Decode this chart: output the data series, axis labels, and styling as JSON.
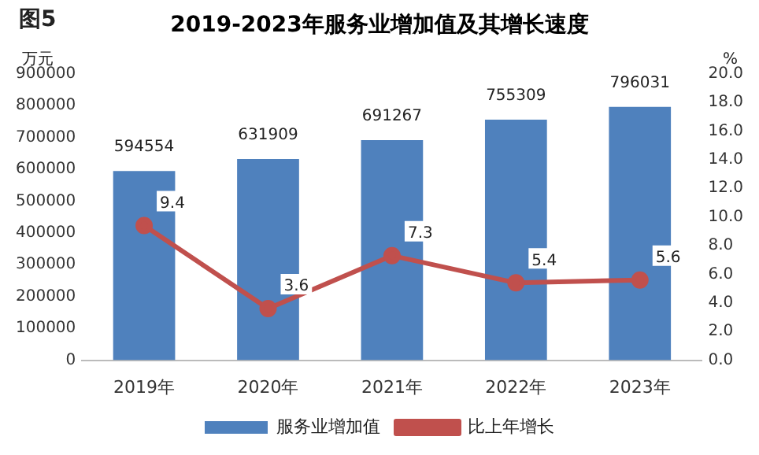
{
  "chart_data": {
    "type": "bar",
    "title": "2019-2023年服务业增加值及其增长速度",
    "annotations": [
      "图5"
    ],
    "ylabel": "万元",
    "y2label": "%",
    "categories": [
      "2019年",
      "2020年",
      "2021年",
      "2022年",
      "2023年"
    ],
    "series": [
      {
        "name": "服务业增加值",
        "color": "#4f81bd",
        "values": [
          594554,
          631909,
          691267,
          755309,
          796031
        ]
      },
      {
        "name": "比上年增长",
        "type": "line",
        "axis": "y2",
        "color": "#c0504d",
        "marker": "circle",
        "values": [
          9.4,
          3.6,
          7.3,
          5.4,
          5.6
        ]
      }
    ],
    "ylim": [
      0,
      900000
    ],
    "yticks": [
      0,
      100000,
      200000,
      300000,
      400000,
      500000,
      600000,
      700000,
      800000,
      900000
    ],
    "y2lim": [
      0,
      20
    ],
    "y2ticks": [
      {
        "value": 0,
        "label": "0.0"
      },
      {
        "value": 2,
        "label": "2.0"
      },
      {
        "value": 4,
        "label": "4.0"
      },
      {
        "value": 6,
        "label": "6.0"
      },
      {
        "value": 8,
        "label": "8.0"
      },
      {
        "value": 10,
        "label": "10.0"
      },
      {
        "value": 12,
        "label": "12.0"
      },
      {
        "value": 14,
        "label": "14.0"
      },
      {
        "value": 16,
        "label": "16.0"
      },
      {
        "value": 18,
        "label": "18.0"
      },
      {
        "value": 20,
        "label": "20.0"
      }
    ],
    "grid": false,
    "legend": "bottom",
    "data_labels": true
  }
}
